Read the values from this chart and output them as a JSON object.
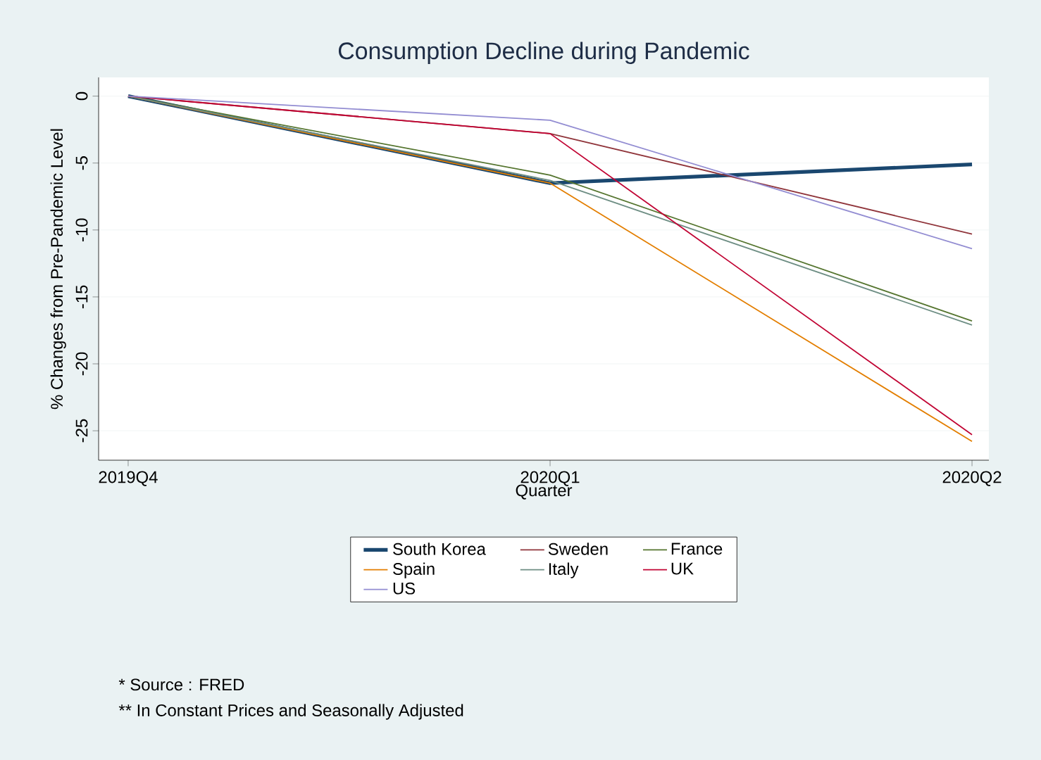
{
  "chart_data": {
    "type": "line",
    "title": "Consumption Decline during Pandemic",
    "xlabel": "Quarter",
    "ylabel": "% Changes from Pre-Pandemic Level",
    "categories": [
      "2019Q4",
      "2020Q1",
      "2020Q2"
    ],
    "series": [
      {
        "name": "South Korea",
        "color": "#1a476f",
        "values": [
          0,
          -6.5,
          -5.1
        ]
      },
      {
        "name": "Sweden",
        "color": "#90353b",
        "values": [
          0,
          -2.8,
          -10.3
        ]
      },
      {
        "name": "France",
        "color": "#55752f",
        "values": [
          0,
          -5.9,
          -16.8
        ]
      },
      {
        "name": "Spain",
        "color": "#e37e00",
        "values": [
          0,
          -6.5,
          -25.8
        ]
      },
      {
        "name": "Italy",
        "color": "#6e8e84",
        "values": [
          0,
          -6.3,
          -17.1
        ]
      },
      {
        "name": "UK",
        "color": "#c10534",
        "values": [
          0,
          -2.8,
          -25.3
        ]
      },
      {
        "name": "US",
        "color": "#938dd2",
        "values": [
          0,
          -1.8,
          -11.4
        ]
      }
    ],
    "ylim": [
      -27.2,
      1.4
    ],
    "yticks": [
      0,
      -5,
      -10,
      -15,
      -20,
      -25
    ],
    "grid": "y",
    "legend": "bottom",
    "marker": "none",
    "line_style": "solid",
    "annotations": [
      "* Source : FRED",
      "** In Constant Prices and Seasonally Adjusted"
    ]
  }
}
